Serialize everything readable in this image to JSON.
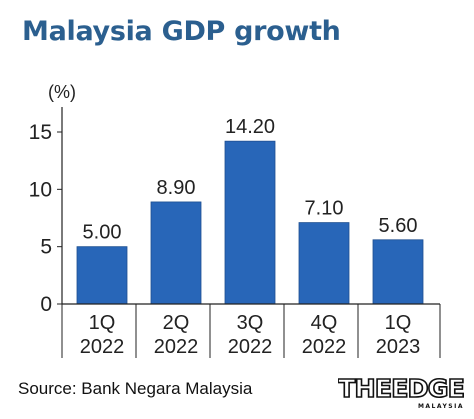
{
  "title": "Malaysia GDP growth",
  "source": "Source: Bank Negara Malaysia",
  "logo": {
    "text": "THEEDGE",
    "subtext": "MALAYSIA"
  },
  "colors": {
    "title": "#2b5f8f",
    "bar": "#2866b8",
    "axis": "#222222"
  },
  "chart_data": {
    "type": "bar",
    "unit_label": "(%)",
    "categories": [
      [
        "1Q",
        "2022"
      ],
      [
        "2Q",
        "2022"
      ],
      [
        "3Q",
        "2022"
      ],
      [
        "4Q",
        "2022"
      ],
      [
        "1Q",
        "2023"
      ]
    ],
    "values": [
      5.0,
      8.9,
      14.2,
      7.1,
      5.6
    ],
    "data_labels": [
      "5.00",
      "8.90",
      "14.20",
      "7.10",
      "5.60"
    ],
    "ylim": [
      0,
      15
    ],
    "yticks": [
      0,
      5,
      10,
      15
    ],
    "grid": false,
    "legend": "none"
  }
}
